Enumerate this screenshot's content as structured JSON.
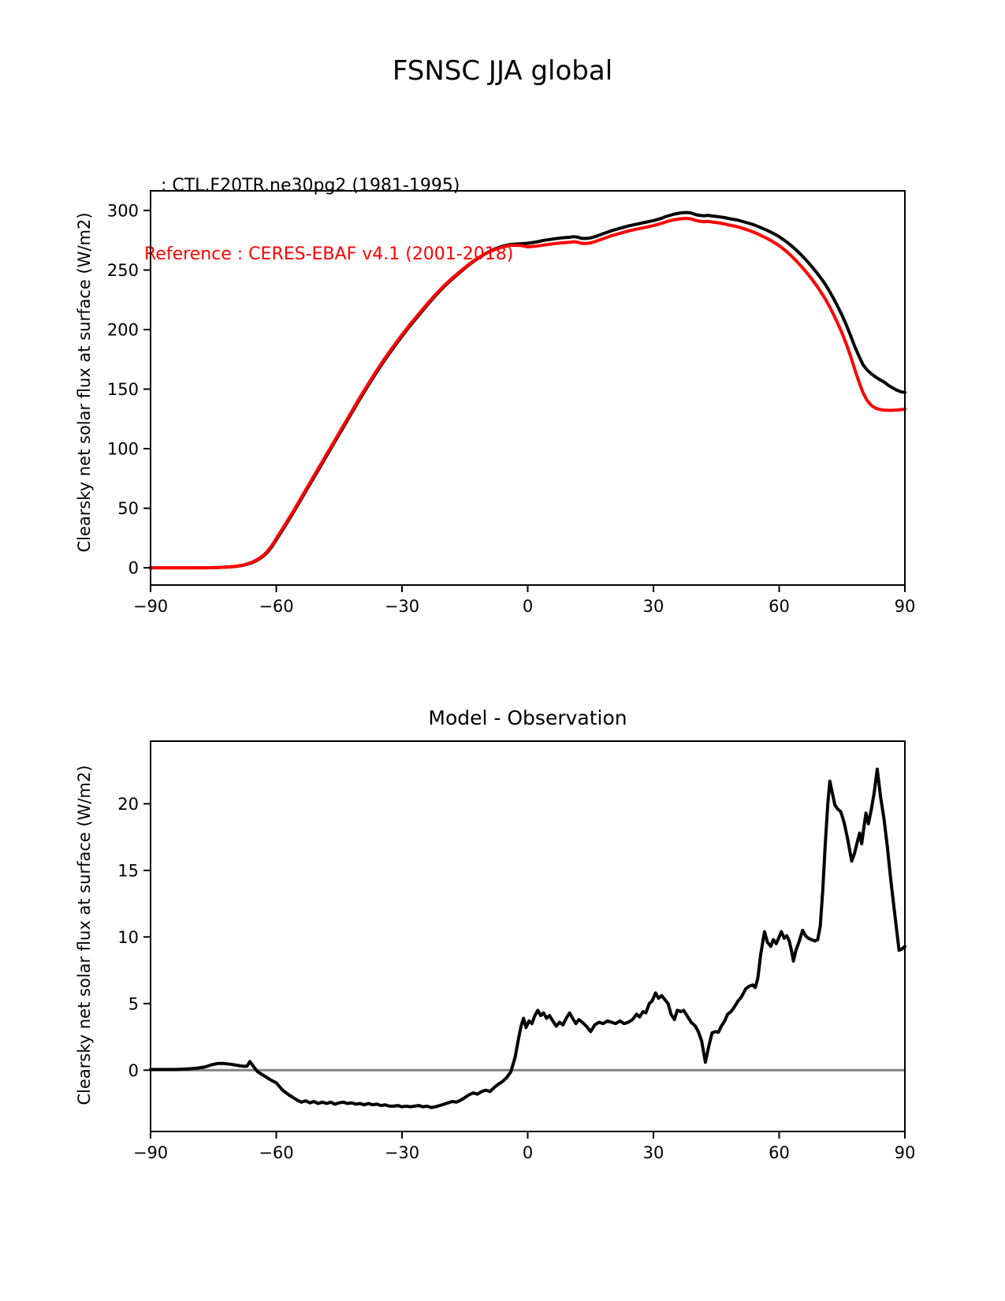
{
  "figure": {
    "title": "FSNSC JJA global",
    "legend": [
      {
        "label": "   : CTL.F20TR.ne30pg2 (1981-1995)",
        "color": "#000000"
      },
      {
        "label": "Reference : CERES-EBAF v4.1 (2001-2018)",
        "color": "#ff0000"
      }
    ]
  },
  "chart_data": [
    {
      "type": "line",
      "title": "",
      "xlabel": "",
      "ylabel": "Clearsky net solar flux at surface (W/m2)",
      "xlim": [
        -90,
        90
      ],
      "ylim": [
        -14.5,
        316.5
      ],
      "x_ticks": [
        -90,
        -60,
        -30,
        0,
        30,
        60,
        90
      ],
      "y_ticks": [
        0,
        50,
        100,
        150,
        200,
        250,
        300
      ],
      "grid": false,
      "legend_position": "above-left",
      "series": [
        {
          "name": "CTL.F20TR.ne30pg2 (1981-1995)",
          "color": "#000000",
          "x": [
            -90,
            -85,
            -80,
            -77,
            -74,
            -72,
            -70,
            -69,
            -68,
            -67,
            -66,
            -65,
            -64,
            -63,
            -62,
            -61,
            -60,
            -58,
            -56,
            -54,
            -52,
            -50,
            -48,
            -46,
            -44,
            -42,
            -40,
            -38,
            -36,
            -34,
            -32,
            -30,
            -28,
            -26,
            -24,
            -22,
            -20,
            -18,
            -16,
            -14,
            -12,
            -10,
            -8,
            -6,
            -4,
            -2,
            0,
            2,
            4,
            6,
            8,
            10,
            11,
            12,
            13,
            14,
            15,
            16,
            18,
            20,
            22,
            24,
            26,
            28,
            30,
            31,
            32,
            33,
            34,
            35,
            36,
            37,
            38,
            39,
            40,
            41,
            42,
            43,
            44,
            45,
            46,
            47,
            48,
            49,
            50,
            51,
            52,
            53,
            54,
            55,
            56,
            57,
            58,
            59,
            60,
            61,
            62,
            63,
            64,
            65,
            66,
            67,
            68,
            69,
            70,
            71,
            72,
            73,
            74,
            75,
            76,
            77,
            78,
            79,
            80,
            81,
            82,
            83,
            84,
            85,
            86,
            87,
            88,
            89,
            90
          ],
          "values": [
            0,
            0,
            0,
            0,
            0.2,
            0.5,
            1,
            1.5,
            2,
            3,
            4,
            5.5,
            7.5,
            10,
            13.5,
            18,
            23.5,
            34.5,
            46,
            58,
            70,
            82,
            94,
            106,
            118,
            130,
            142,
            153.5,
            164.5,
            175,
            185,
            194.5,
            203.5,
            212,
            220.5,
            228.5,
            236,
            242.5,
            248.5,
            254.5,
            259.5,
            264,
            267.5,
            270,
            271.5,
            272,
            272.5,
            273.5,
            275,
            276,
            277,
            277.5,
            278,
            277.5,
            276.5,
            276.5,
            277,
            278,
            280.5,
            283,
            285,
            287,
            288.5,
            290,
            291.5,
            292.5,
            293.5,
            295,
            296,
            297,
            297.6,
            298.1,
            298.3,
            297.9,
            296.6,
            295.9,
            295.5,
            295.9,
            295.4,
            295,
            294.5,
            294,
            293.2,
            292.6,
            292,
            291,
            290,
            289,
            287.9,
            286.5,
            285,
            283.5,
            281.8,
            280,
            278,
            275.6,
            273,
            270.1,
            267,
            263.6,
            260,
            256.1,
            252,
            247.6,
            243,
            238,
            232.2,
            226,
            219.2,
            212,
            204,
            195.3,
            186,
            178,
            170.5,
            166,
            162.8,
            160.2,
            158,
            156,
            153.4,
            151.2,
            149.3,
            147.8,
            147.2
          ]
        },
        {
          "name": "CERES-EBAF v4.1 (2001-2018)",
          "color": "#ff0000",
          "x": [
            -90,
            -85,
            -80,
            -77,
            -74,
            -72,
            -70,
            -69,
            -68,
            -67,
            -66,
            -65,
            -64,
            -63,
            -62,
            -61,
            -60,
            -58,
            -56,
            -54,
            -52,
            -50,
            -48,
            -46,
            -44,
            -42,
            -40,
            -38,
            -36,
            -34,
            -32,
            -30,
            -28,
            -26,
            -24,
            -22,
            -20,
            -18,
            -16,
            -14,
            -12,
            -10,
            -8,
            -6,
            -4,
            -2,
            0,
            2,
            4,
            6,
            8,
            10,
            11,
            12,
            13,
            14,
            15,
            16,
            18,
            20,
            22,
            24,
            26,
            28,
            30,
            31,
            32,
            33,
            34,
            35,
            36,
            37,
            38,
            39,
            40,
            41,
            42,
            43,
            44,
            45,
            46,
            47,
            48,
            49,
            50,
            51,
            52,
            53,
            54,
            55,
            56,
            57,
            58,
            59,
            60,
            61,
            62,
            63,
            64,
            65,
            66,
            67,
            68,
            69,
            70,
            71,
            72,
            73,
            74,
            75,
            76,
            77,
            78,
            79,
            80,
            81,
            82,
            83,
            84,
            85,
            86,
            87,
            88,
            89,
            90
          ],
          "values": [
            0,
            0,
            0,
            0,
            0.2,
            0.6,
            1.1,
            1.7,
            2.2,
            3.3,
            4.4,
            6,
            8,
            10.7,
            14.3,
            19,
            24.6,
            35.7,
            47.2,
            59.2,
            71.2,
            83.2,
            95.2,
            107.2,
            119.3,
            131.3,
            143.3,
            154.8,
            165.8,
            176.3,
            186.2,
            195.7,
            204.7,
            213.1,
            221.5,
            229.4,
            236.8,
            243.2,
            249.1,
            255,
            259.8,
            263.8,
            267,
            269.3,
            270.8,
            270.7,
            269.5,
            270,
            271,
            272,
            272.8,
            273.3,
            273.8,
            273.3,
            272.3,
            272.3,
            272.8,
            273.8,
            276.3,
            278.8,
            280.8,
            282.8,
            284.3,
            285.8,
            287.3,
            288.2,
            289.2,
            290.5,
            291.5,
            292.3,
            292.8,
            293.1,
            293.3,
            292.9,
            291.7,
            291,
            290.5,
            290.8,
            290.3,
            289.9,
            289.3,
            288.7,
            287.8,
            287.1,
            286.4,
            285.3,
            284.2,
            283,
            281.7,
            280.1,
            278.4,
            276.7,
            274.8,
            272.7,
            270.4,
            267.7,
            264.8,
            261.5,
            258,
            254.2,
            250.2,
            245.9,
            241.4,
            236.5,
            231.3,
            225.7,
            219.4,
            212.5,
            205,
            197,
            188,
            178,
            167,
            156.5,
            147,
            140.5,
            136.3,
            134,
            132.9,
            132.4,
            132.2,
            132.2,
            132.4,
            132.8,
            133.2
          ]
        }
      ]
    },
    {
      "type": "line",
      "title": "Model - Observation",
      "xlabel": "",
      "ylabel": "Clearsky net solar flux at surface (W/m2)",
      "xlim": [
        -90,
        90
      ],
      "ylim": [
        -4.6,
        24.7
      ],
      "x_ticks": [
        -90,
        -60,
        -30,
        0,
        30,
        60,
        90
      ],
      "y_ticks": [
        0,
        5,
        10,
        15,
        20
      ],
      "grid": false,
      "zero_line": {
        "value": 0,
        "color": "#808080"
      },
      "series": [
        {
          "name": "Model - Observation",
          "color": "#000000",
          "x": [
            -90,
            -87,
            -84,
            -81,
            -79,
            -77,
            -75.5,
            -74,
            -72.5,
            -71,
            -70,
            -69,
            -68,
            -67,
            -66.3,
            -65.5,
            -64.5,
            -63.5,
            -62.5,
            -61.5,
            -60,
            -58.5,
            -57,
            -56,
            -55,
            -54,
            -53,
            -52,
            -51,
            -50,
            -49,
            -48,
            -47,
            -46,
            -45,
            -44,
            -43,
            -42,
            -41,
            -40,
            -39,
            -38,
            -37,
            -36,
            -35,
            -34,
            -33,
            -32,
            -31,
            -30,
            -29,
            -28,
            -27,
            -26,
            -25,
            -24,
            -23,
            -22,
            -21,
            -20,
            -19,
            -18,
            -17,
            -16,
            -15,
            -14,
            -13,
            -12,
            -11,
            -10,
            -9,
            -8,
            -7,
            -6,
            -5,
            -4,
            -3,
            -2.3,
            -1.6,
            -1,
            -0.4,
            0.3,
            1,
            1.7,
            2.4,
            3.1,
            3.8,
            4.5,
            5.2,
            6,
            6.8,
            7.6,
            8.4,
            9.2,
            10,
            10.7,
            11.5,
            12.2,
            13,
            14,
            15,
            16,
            17,
            18,
            19,
            20,
            21,
            22,
            23,
            24,
            25,
            26,
            26.7,
            27.5,
            28.2,
            29,
            29.7,
            30.5,
            31.2,
            32,
            32.7,
            33.5,
            34.2,
            35,
            35.7,
            36.5,
            37.2,
            38,
            39,
            40,
            40.7,
            41.5,
            42.4,
            43.2,
            44,
            44.7,
            45.5,
            46.2,
            47,
            47.7,
            48.5,
            49.2,
            50.2,
            51,
            52,
            52.8,
            53.7,
            54.3,
            54.9,
            55.6,
            56.5,
            57.2,
            58,
            58.6,
            59.3,
            60,
            60.5,
            61.2,
            61.8,
            62.4,
            63,
            63.4,
            64,
            64.7,
            65.6,
            66.3,
            67,
            67.7,
            68.5,
            69.2,
            69.8,
            70.4,
            71,
            71.6,
            72.1,
            72.7,
            73.3,
            74,
            74.7,
            75.5,
            76.3,
            77.3,
            78,
            78.7,
            79.2,
            79.7,
            80.3,
            80.7,
            81.3,
            82,
            82.7,
            83.4,
            84.2,
            85,
            85.8,
            86.6,
            87.4,
            88,
            88.6,
            89.3,
            90
          ],
          "values": [
            0.05,
            0.05,
            0.05,
            0.1,
            0.15,
            0.25,
            0.4,
            0.5,
            0.5,
            0.45,
            0.4,
            0.35,
            0.3,
            0.3,
            0.65,
            0.3,
            -0.1,
            -0.3,
            -0.5,
            -0.7,
            -0.95,
            -1.5,
            -1.85,
            -2.05,
            -2.25,
            -2.4,
            -2.3,
            -2.45,
            -2.35,
            -2.5,
            -2.4,
            -2.5,
            -2.4,
            -2.55,
            -2.45,
            -2.4,
            -2.5,
            -2.45,
            -2.55,
            -2.5,
            -2.6,
            -2.5,
            -2.6,
            -2.55,
            -2.65,
            -2.6,
            -2.7,
            -2.7,
            -2.65,
            -2.75,
            -2.7,
            -2.75,
            -2.7,
            -2.65,
            -2.75,
            -2.7,
            -2.8,
            -2.75,
            -2.65,
            -2.55,
            -2.45,
            -2.35,
            -2.4,
            -2.25,
            -2.05,
            -1.85,
            -1.7,
            -1.8,
            -1.6,
            -1.5,
            -1.6,
            -1.3,
            -1.05,
            -0.85,
            -0.55,
            -0.1,
            1.0,
            2.2,
            3.3,
            3.9,
            3.2,
            3.7,
            3.5,
            4.1,
            4.5,
            4.1,
            4.3,
            3.9,
            4.1,
            3.7,
            3.3,
            3.6,
            3.4,
            3.9,
            4.3,
            3.9,
            3.5,
            3.8,
            3.6,
            3.3,
            2.9,
            3.4,
            3.6,
            3.5,
            3.7,
            3.6,
            3.5,
            3.7,
            3.5,
            3.6,
            3.8,
            4.2,
            4.0,
            4.4,
            4.3,
            5.0,
            5.2,
            5.8,
            5.4,
            5.6,
            5.3,
            5.0,
            4.2,
            3.8,
            4.5,
            4.4,
            4.5,
            4.1,
            3.6,
            3.3,
            2.9,
            2.2,
            0.6,
            1.8,
            2.8,
            2.9,
            2.85,
            3.3,
            3.7,
            4.2,
            4.4,
            4.7,
            5.2,
            5.5,
            6.1,
            6.3,
            6.4,
            6.2,
            6.9,
            8.7,
            10.4,
            9.6,
            9.3,
            9.8,
            9.5,
            10.0,
            10.4,
            9.9,
            10.1,
            9.7,
            8.9,
            8.2,
            9.0,
            9.6,
            10.5,
            10.1,
            9.9,
            9.8,
            9.7,
            9.8,
            10.8,
            13.5,
            17.0,
            20.0,
            21.7,
            20.8,
            19.9,
            19.6,
            19.4,
            18.6,
            17.4,
            15.7,
            16.3,
            17.2,
            17.8,
            17.0,
            18.4,
            19.3,
            18.5,
            19.6,
            20.9,
            22.6,
            20.5,
            18.9,
            16.8,
            14.4,
            12.2,
            10.6,
            9.0,
            9.1,
            9.3
          ]
        }
      ]
    }
  ]
}
